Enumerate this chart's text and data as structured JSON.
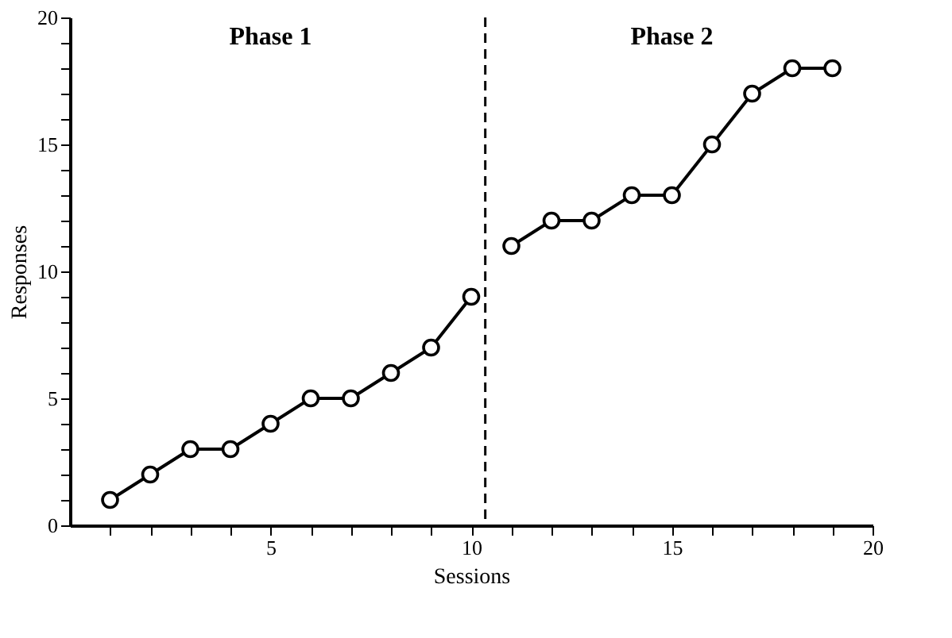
{
  "chart_data": {
    "type": "line",
    "xlabel": "Sessions",
    "ylabel": "Responses",
    "annotations": [
      "Phase 1",
      "Phase 2"
    ],
    "series": [
      {
        "color": "#000000",
        "x": [
          1,
          2,
          3,
          4,
          5,
          6,
          7,
          8,
          9,
          10
        ],
        "values": [
          1,
          2,
          3,
          3,
          4,
          5,
          5,
          6,
          7,
          9
        ]
      },
      {
        "color": "#000000",
        "x": [
          11,
          12,
          13,
          14,
          15,
          16,
          17,
          18,
          19
        ],
        "values": [
          11,
          12,
          12,
          13,
          13,
          15,
          17,
          18,
          18
        ]
      }
    ],
    "xlim": [
      0,
      20
    ],
    "ylim": [
      0,
      20
    ],
    "xticks": [
      {
        "value": 1,
        "label": null
      },
      {
        "value": 2,
        "label": null
      },
      {
        "value": 3,
        "label": null
      },
      {
        "value": 4,
        "label": null
      },
      5,
      {
        "value": 6,
        "label": null
      },
      {
        "value": 7,
        "label": null
      },
      {
        "value": 8,
        "label": null
      },
      {
        "value": 9,
        "label": null
      },
      10,
      {
        "value": 11,
        "label": null
      },
      {
        "value": 12,
        "label": null
      },
      {
        "value": 13,
        "label": null
      },
      {
        "value": 14,
        "label": null
      },
      15,
      {
        "value": 16,
        "label": null
      },
      {
        "value": 17,
        "label": null
      },
      {
        "value": 18,
        "label": null
      },
      {
        "value": 19,
        "label": null
      },
      20
    ],
    "yticks": [
      0,
      {
        "value": 1,
        "label": null
      },
      {
        "value": 2,
        "label": null
      },
      {
        "value": 3,
        "label": null
      },
      {
        "value": 4,
        "label": null
      },
      5,
      {
        "value": 6,
        "label": null
      },
      {
        "value": 7,
        "label": null
      },
      {
        "value": 8,
        "label": null
      },
      {
        "value": 9,
        "label": null
      },
      10,
      {
        "value": 11,
        "label": null
      },
      {
        "value": 12,
        "label": null
      },
      {
        "value": 13,
        "label": null
      },
      {
        "value": 14,
        "label": null
      },
      15,
      {
        "value": 16,
        "label": null
      },
      {
        "value": 17,
        "label": null
      },
      {
        "value": 18,
        "label": null
      },
      {
        "value": 19,
        "label": null
      },
      20
    ],
    "ref_lines": [
      {
        "axis": "x",
        "value": 10.35,
        "label": null,
        "color": "#000000",
        "line_style": "dashed"
      }
    ],
    "marker": "circle",
    "line_style": "solid",
    "grid": false
  }
}
